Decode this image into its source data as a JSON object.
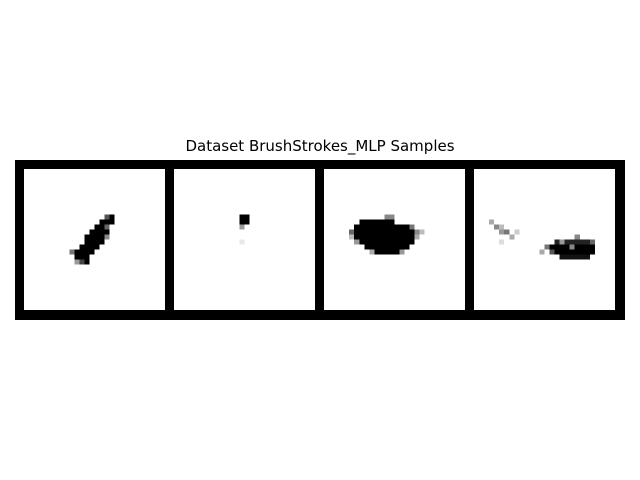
{
  "figure": {
    "title": "Dataset BrushStrokes_MLP Samples"
  },
  "samples": [
    {
      "stroke": "diagonal-ellipse"
    },
    {
      "stroke": "small-dot"
    },
    {
      "stroke": "wide-blob"
    },
    {
      "stroke": "scattered-and-horizontal"
    }
  ],
  "colors": {
    "background": "#ffffff",
    "ink": "#000000",
    "grid": "#000000"
  }
}
